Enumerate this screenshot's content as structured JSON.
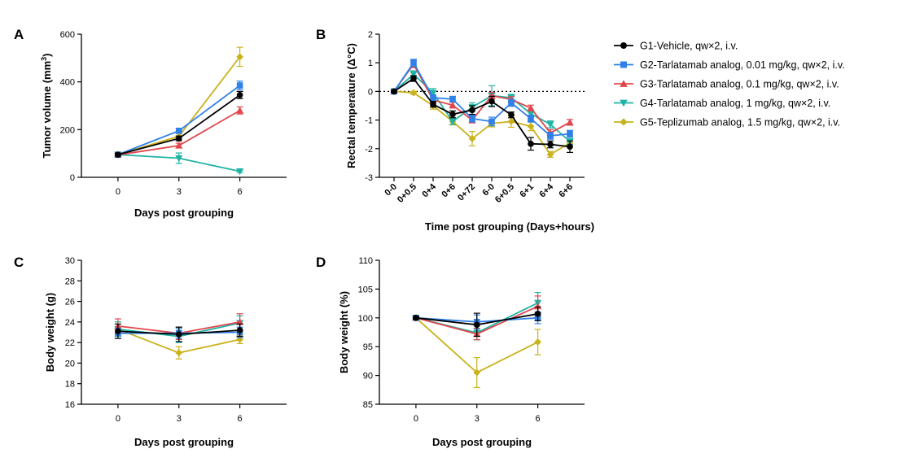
{
  "series_styles": [
    {
      "name": "G1-Vehicle, qw×2, i.v.",
      "color": "#000000",
      "marker": "circle"
    },
    {
      "name": "G2-Tarlatamab analog, 0.01 mg/kg, qw×2, i.v.",
      "color": "#2f80e8",
      "marker": "square"
    },
    {
      "name": "G3-Tarlatamab analog, 0.1 mg/kg, qw×2, i.v.",
      "color": "#e0474c",
      "marker": "triangle-up"
    },
    {
      "name": "G4-Tarlatamab analog, 1 mg/kg, qw×2, i.v.",
      "color": "#1fb3a6",
      "marker": "triangle-down"
    },
    {
      "name": "G5-Teplizumab analog, 1.5 mg/kg, qw×2, i.v.",
      "color": "#c9b21a",
      "marker": "diamond"
    }
  ],
  "legend": {
    "placement": "right",
    "items": [
      "G1-Vehicle, qw×2, i.v.",
      "G2-Tarlatamab analog, 0.01 mg/kg, qw×2, i.v.",
      "G3-Tarlatamab analog, 0.1 mg/kg, qw×2, i.v.",
      "G4-Tarlatamab analog, 1 mg/kg, qw×2, i.v.",
      "G5-Teplizumab analog, 1.5 mg/kg, qw×2, i.v."
    ]
  },
  "chart_data": [
    {
      "panel": "A",
      "type": "line",
      "xlabel": "Days post grouping",
      "ylabel": "Tumor volume (mm³)",
      "ylabel_main": "Tumor volume (mm",
      "ylabel_sup": "3",
      "ylabel_end": ")",
      "x": [
        "0",
        "3",
        "6"
      ],
      "ylim": [
        0,
        600
      ],
      "yticks": [
        0,
        200,
        400,
        600
      ],
      "series": [
        {
          "name": "G1-Vehicle, qw×2, i.v.",
          "values": [
            95,
            163,
            345
          ],
          "errors": [
            6,
            10,
            15
          ]
        },
        {
          "name": "G2-Tarlatamab analog, 0.01 mg/kg, qw×2, i.v.",
          "values": [
            95,
            195,
            385
          ],
          "errors": [
            6,
            10,
            18
          ]
        },
        {
          "name": "G3-Tarlatamab analog, 0.1 mg/kg, qw×2, i.v.",
          "values": [
            94,
            133,
            280
          ],
          "errors": [
            6,
            10,
            15
          ]
        },
        {
          "name": "G4-Tarlatamab analog, 1 mg/kg, qw×2, i.v.",
          "values": [
            95,
            80,
            25
          ],
          "errors": [
            6,
            22,
            5
          ]
        },
        {
          "name": "G5-Teplizumab analog, 1.5 mg/kg, qw×2, i.v.",
          "values": [
            95,
            172,
            505
          ],
          "errors": [
            6,
            12,
            40
          ]
        }
      ]
    },
    {
      "panel": "B",
      "type": "line",
      "xlabel": "Time post grouping (Days+hours)",
      "ylabel": "Rectal temperature (Δ°C)",
      "x": [
        "0-0",
        "0+0.5",
        "0+4",
        "0+6",
        "0+72",
        "6-0",
        "6+0.5",
        "6+1",
        "6+4",
        "6+6"
      ],
      "ylim": [
        -3,
        2
      ],
      "yticks": [
        -3,
        -2,
        -1,
        0,
        1,
        2
      ],
      "reference_line": 0,
      "series": [
        {
          "name": "G1-Vehicle, qw×2, i.v.",
          "values": [
            0,
            0.45,
            -0.45,
            -0.8,
            -0.65,
            -0.35,
            -0.82,
            -1.83,
            -1.85,
            -1.93
          ],
          "errors": [
            0.03,
            0.1,
            0.1,
            0.12,
            0.15,
            0.18,
            0.1,
            0.22,
            0.12,
            0.2
          ]
        },
        {
          "name": "G2-Tarlatamab analog, 0.01 mg/kg, qw×2, i.v.",
          "values": [
            0,
            1.0,
            -0.22,
            -0.27,
            -0.95,
            -1.05,
            -0.4,
            -0.95,
            -1.55,
            -1.48
          ],
          "errors": [
            0.03,
            0.12,
            0.1,
            0.1,
            0.12,
            0.15,
            0.12,
            0.12,
            0.12,
            0.12
          ]
        },
        {
          "name": "G3-Tarlatamab analog, 0.1 mg/kg, qw×2, i.v.",
          "values": [
            0,
            0.95,
            -0.3,
            -0.48,
            -1.0,
            -0.15,
            -0.28,
            -0.58,
            -1.45,
            -1.08
          ],
          "errors": [
            0.03,
            0.12,
            0.1,
            0.1,
            0.1,
            0.12,
            0.1,
            0.1,
            0.12,
            0.1
          ]
        },
        {
          "name": "G4-Tarlatamab analog, 1 mg/kg, qw×2, i.v.",
          "values": [
            0,
            0.6,
            -0.05,
            -1.05,
            -0.55,
            -0.15,
            -0.22,
            -0.78,
            -1.15,
            -1.75
          ],
          "errors": [
            0.03,
            0.12,
            0.15,
            0.1,
            0.15,
            0.35,
            0.12,
            0.1,
            0.12,
            0.1
          ]
        },
        {
          "name": "G5-Teplizumab analog, 1.5 mg/kg, qw×2, i.v.",
          "values": [
            0,
            -0.05,
            -0.5,
            -1.05,
            -1.65,
            -1.12,
            -1.05,
            -1.22,
            -2.2,
            -1.8
          ],
          "errors": [
            0.03,
            0.05,
            0.12,
            0.12,
            0.25,
            0.12,
            0.2,
            0.15,
            0.1,
            0.12
          ]
        }
      ]
    },
    {
      "panel": "C",
      "type": "line",
      "xlabel": "Days post grouping",
      "ylabel": "Body weight (g)",
      "x": [
        "0",
        "3",
        "6"
      ],
      "ylim": [
        16,
        30
      ],
      "yticks": [
        16,
        18,
        20,
        22,
        24,
        26,
        28,
        30
      ],
      "series": [
        {
          "name": "G1-Vehicle, qw×2, i.v.",
          "values": [
            23.1,
            22.8,
            23.2
          ],
          "errors": [
            0.7,
            0.7,
            0.6
          ]
        },
        {
          "name": "G2-Tarlatamab analog, 0.01 mg/kg, qw×2, i.v.",
          "values": [
            22.9,
            22.9,
            23.0
          ],
          "errors": [
            0.5,
            0.5,
            0.5
          ]
        },
        {
          "name": "G3-Tarlatamab analog, 0.1 mg/kg, qw×2, i.v.",
          "values": [
            23.6,
            22.9,
            24.0
          ],
          "errors": [
            0.7,
            0.6,
            0.8
          ]
        },
        {
          "name": "G4-Tarlatamab analog, 1 mg/kg, qw×2, i.v.",
          "values": [
            23.3,
            22.6,
            23.9
          ],
          "errors": [
            0.7,
            0.6,
            0.7
          ]
        },
        {
          "name": "G5-Teplizumab analog, 1.5 mg/kg, qw×2, i.v.",
          "values": [
            23.3,
            21.0,
            22.3
          ],
          "errors": [
            0.7,
            0.6,
            0.4
          ]
        }
      ]
    },
    {
      "panel": "D",
      "type": "line",
      "xlabel": "Days post grouping",
      "ylabel": "Body weight (%)",
      "x": [
        "0",
        "3",
        "6"
      ],
      "ylim": [
        85,
        110
      ],
      "yticks": [
        85,
        90,
        95,
        100,
        105,
        110
      ],
      "series": [
        {
          "name": "G1-Vehicle, qw×2, i.v.",
          "values": [
            100,
            98.8,
            100.7
          ],
          "errors": [
            0.2,
            2.0,
            1.2
          ]
        },
        {
          "name": "G2-Tarlatamab analog, 0.01 mg/kg, qw×2, i.v.",
          "values": [
            100,
            99.3,
            100.0
          ],
          "errors": [
            0.2,
            1.2,
            1.0
          ]
        },
        {
          "name": "G3-Tarlatamab analog, 0.1 mg/kg, qw×2, i.v.",
          "values": [
            100,
            97.2,
            102.0
          ],
          "errors": [
            0.2,
            1.0,
            1.8
          ]
        },
        {
          "name": "G4-Tarlatamab analog, 1 mg/kg, qw×2, i.v.",
          "values": [
            100,
            97.4,
            102.6
          ],
          "errors": [
            0.2,
            1.2,
            1.8
          ]
        },
        {
          "name": "G5-Teplizumab analog, 1.5 mg/kg, qw×2, i.v.",
          "values": [
            100,
            90.5,
            95.8
          ],
          "errors": [
            0.2,
            2.6,
            2.2
          ]
        }
      ]
    }
  ]
}
